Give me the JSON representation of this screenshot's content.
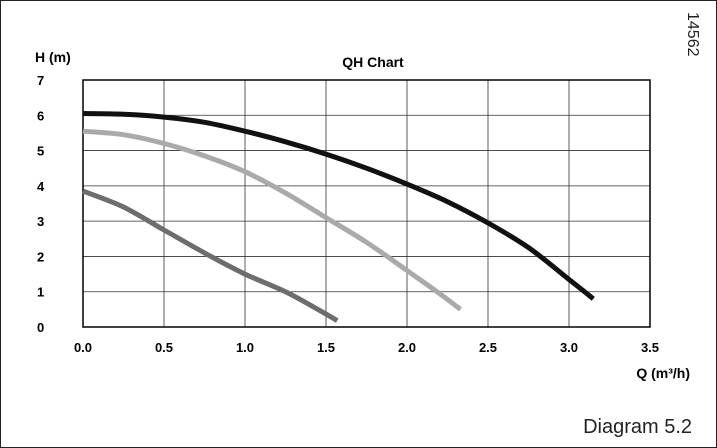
{
  "figure": {
    "code": "14562",
    "caption": "Diagram 5.2"
  },
  "chart_data": {
    "type": "line",
    "title": "QH Chart",
    "xlabel": "Q (m³/h)",
    "ylabel": "H (m)",
    "xlim": [
      0,
      3.5
    ],
    "ylim": [
      0,
      7
    ],
    "x_ticks": [
      "0.0",
      "0.5",
      "1.0",
      "1.5",
      "2.0",
      "2.5",
      "3.0",
      "3.5"
    ],
    "y_ticks": [
      "0",
      "1",
      "2",
      "3",
      "4",
      "5",
      "6",
      "7"
    ],
    "grid": true,
    "legend": "none",
    "series": [
      {
        "color": "#111111",
        "points": [
          [
            0.0,
            6.05
          ],
          [
            0.25,
            6.03
          ],
          [
            0.5,
            5.95
          ],
          [
            0.75,
            5.8
          ],
          [
            1.0,
            5.55
          ],
          [
            1.25,
            5.25
          ],
          [
            1.5,
            4.9
          ],
          [
            1.75,
            4.5
          ],
          [
            2.0,
            4.05
          ],
          [
            2.25,
            3.55
          ],
          [
            2.5,
            2.95
          ],
          [
            2.75,
            2.25
          ],
          [
            3.0,
            1.35
          ],
          [
            3.15,
            0.8
          ]
        ]
      },
      {
        "color": "#aaaaaa",
        "points": [
          [
            0.0,
            5.55
          ],
          [
            0.25,
            5.45
          ],
          [
            0.5,
            5.2
          ],
          [
            0.75,
            4.85
          ],
          [
            1.0,
            4.4
          ],
          [
            1.25,
            3.8
          ],
          [
            1.5,
            3.1
          ],
          [
            1.75,
            2.4
          ],
          [
            2.0,
            1.6
          ],
          [
            2.2,
            0.95
          ],
          [
            2.33,
            0.5
          ]
        ]
      },
      {
        "color": "#6d6d6d",
        "points": [
          [
            0.0,
            3.85
          ],
          [
            0.25,
            3.4
          ],
          [
            0.5,
            2.75
          ],
          [
            0.75,
            2.1
          ],
          [
            1.0,
            1.5
          ],
          [
            1.25,
            1.0
          ],
          [
            1.45,
            0.5
          ],
          [
            1.57,
            0.18
          ]
        ]
      }
    ]
  }
}
